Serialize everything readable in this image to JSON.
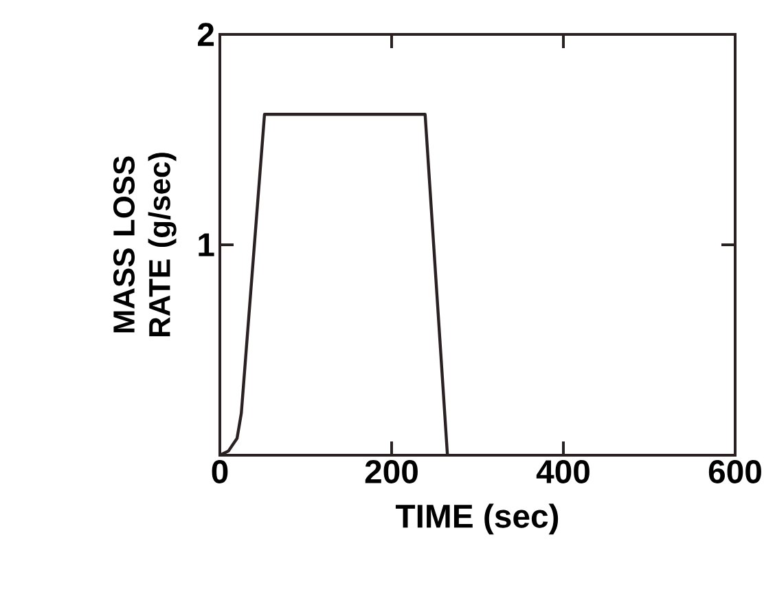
{
  "chart_data": {
    "type": "line",
    "xlabel": "TIME (sec)",
    "ylabel": "MASS LOSS RATE (g/sec)",
    "x": [
      0,
      10,
      20,
      25,
      52,
      239,
      265
    ],
    "series": [
      {
        "color": "#2a2222",
        "values": [
          0,
          0.02,
          0.08,
          0.2,
          1.62,
          1.62,
          0
        ]
      }
    ],
    "xlim": [
      0,
      600
    ],
    "ylim": [
      0,
      2
    ],
    "xticks": [
      0,
      200,
      400,
      600
    ],
    "yticks": [
      1,
      2
    ],
    "grid": false,
    "marker": "none",
    "line_style": "solid"
  }
}
